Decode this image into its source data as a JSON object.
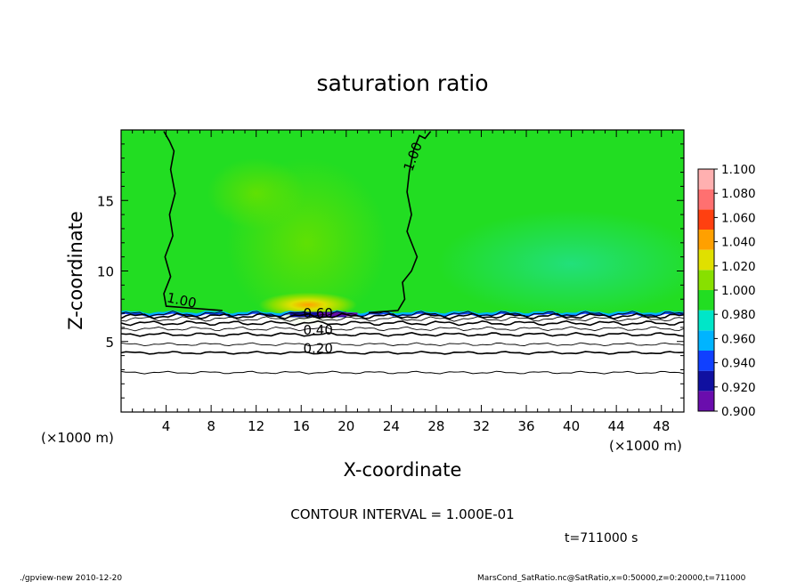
{
  "chart_data": {
    "type": "heatmap",
    "title": "saturation ratio",
    "xlabel": "X-coordinate",
    "ylabel": "Z-coordinate",
    "x_unit_left": "(×1000 m)",
    "x_unit_right": "(×1000 m)",
    "xlim": [
      0,
      50
    ],
    "ylim": [
      0,
      20
    ],
    "x_ticks": [
      4,
      8,
      12,
      16,
      20,
      24,
      28,
      32,
      36,
      40,
      44,
      48
    ],
    "y_ticks": [
      5,
      10,
      15
    ],
    "colorbar": {
      "levels": [
        0.9,
        0.92,
        0.94,
        0.96,
        0.98,
        1.0,
        1.02,
        1.04,
        1.06,
        1.08,
        1.1
      ],
      "labels": [
        "0.900",
        "0.920",
        "0.940",
        "0.960",
        "0.980",
        "1.000",
        "1.020",
        "1.040",
        "1.060",
        "1.080",
        "1.100"
      ],
      "colors": [
        "#6a0dad",
        "#1010a0",
        "#1040ff",
        "#00b4ff",
        "#00e6c8",
        "#22dd22",
        "#88e000",
        "#e0e000",
        "#ffa000",
        "#ff4010",
        "#ff7070",
        "#ffb0b0"
      ]
    },
    "contour_labels": [
      {
        "text": "1.00",
        "x": 26.3,
        "z": 18.0,
        "angle": -70
      },
      {
        "text": "1.00",
        "x": 5.3,
        "z": 7.6,
        "angle": 12
      },
      {
        "text": "0.60",
        "x": 17.5,
        "z": 6.7,
        "angle": 0
      },
      {
        "text": "0.40",
        "x": 17.5,
        "z": 5.5,
        "angle": 0
      },
      {
        "text": "0.20",
        "x": 17.5,
        "z": 4.2,
        "angle": 0
      }
    ],
    "contours": [
      {
        "level": 0.2,
        "base_z": 4.2
      },
      {
        "level": 0.3,
        "base_z": 4.8
      },
      {
        "level": 0.4,
        "base_z": 5.5
      },
      {
        "level": 0.5,
        "base_z": 5.9
      },
      {
        "level": 0.6,
        "base_z": 6.3
      },
      {
        "level": 0.7,
        "base_z": 6.6
      },
      {
        "level": 0.8,
        "base_z": 6.8
      },
      {
        "level": 0.9,
        "base_z": 6.95
      }
    ],
    "low_contour_z": 2.8,
    "cloud_base_z": 7.0
  },
  "annotations": {
    "contour_interval": "CONTOUR INTERVAL = 1.000E-01",
    "time": "t=711000 s",
    "footer_left": "./gpview-new  2010-12-20",
    "footer_right": "MarsCond_SatRatio.nc@SatRatio,x=0:50000,z=0:20000,t=711000"
  }
}
